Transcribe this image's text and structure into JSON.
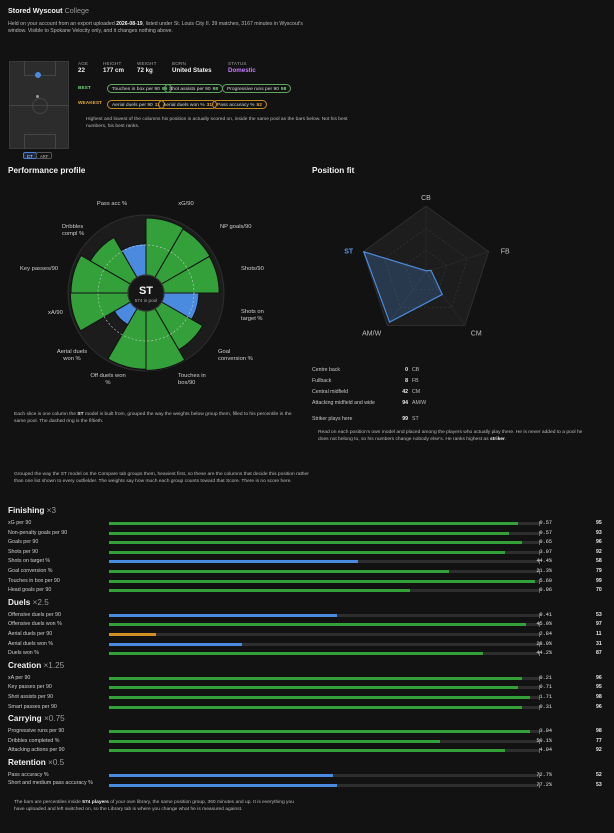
{
  "header": {
    "title": "Stored Wyscout",
    "subtitle": "College",
    "desc_1": "Held on your account from an export uploaded ",
    "desc_date": "2026-08-19",
    "desc_2": ", listed under St. Louis City II. 39 matches, 3167 minutes in Wyscout's window. Visible to Spokane Velocity only, and it changes nothing above."
  },
  "bio": [
    {
      "label": "AGE",
      "value": "22"
    },
    {
      "label": "HEIGHT",
      "value": "177 cm"
    },
    {
      "label": "WEIGHT",
      "value": "72 kg"
    },
    {
      "label": "BORN",
      "value": "United States"
    },
    {
      "label": "STATUS",
      "value": "Domestic"
    }
  ],
  "colors": {
    "status": "#c77dff",
    "green": "#33a03a",
    "blue": "#4a8be0",
    "orange": "#d18f24",
    "best": "#6fd676",
    "weakest": "#e6a73a"
  },
  "best": {
    "label": "BEST",
    "chips": [
      {
        "text": "Touches in box per 90",
        "n": "99"
      },
      {
        "text": "Shot assists per 90",
        "n": "98"
      },
      {
        "text": "Progressive runs per 90",
        "n": "98"
      }
    ]
  },
  "weakest": {
    "label": "WEAKEST",
    "chips": [
      {
        "text": "Aerial duels per 90",
        "n": "11"
      },
      {
        "text": "Aerial duels won %",
        "n": "31"
      },
      {
        "text": "Pass accuracy %",
        "n": "52"
      }
    ]
  },
  "note_bestworst": "Highest and lowest of the columns his position is actually scored on, inside the same pool as the bars below. Not his best numbers, his best ranks.",
  "pitch_buttons": [
    "CT",
    "ARF"
  ],
  "perf": {
    "title": "Performance profile",
    "center": "ST",
    "center_sub": "574 in pool",
    "labels": [
      "Pass acc %",
      "xG/90",
      "NP goals/90",
      "Shots/90",
      "Shots on target %",
      "Goal conversion %",
      "Touches in box/90",
      "Off duels won %",
      "Aerial duels won %",
      "xA/90",
      "Key passes/90",
      "Dribbles compl %"
    ],
    "caption_1": "Each slice is one column the ",
    "caption_st": "ST",
    "caption_2": " model is built from, grouped the way the weights below group them, filled to his percentile in the same pool. The dashed ring is the fiftieth."
  },
  "chart_data": [
    {
      "type": "polar-area",
      "categories": [
        "xG/90",
        "NP goals/90",
        "Shots/90",
        "Shots on target %",
        "Goal conversion %",
        "Touches in box/90",
        "Off duels won %",
        "Aerial duels won %",
        "xA/90",
        "Key passes/90",
        "Dribbles compl %",
        "Pass acc %"
      ],
      "values": [
        95,
        93,
        92,
        58,
        79,
        99,
        97,
        31,
        96,
        95,
        77,
        52
      ],
      "colors": [
        "green",
        "green",
        "green",
        "blue",
        "green",
        "green",
        "green",
        "blue",
        "green",
        "green",
        "green",
        "blue"
      ],
      "rmax": 100,
      "ring50": true
    },
    {
      "type": "radar",
      "categories": [
        "CB",
        "FB",
        "CM",
        "AM/W",
        "ST"
      ],
      "values": [
        0,
        8,
        42,
        94,
        99
      ],
      "rmax": 100,
      "highlight": "ST"
    }
  ],
  "fit": {
    "title": "Position fit",
    "rows": [
      {
        "label": "Centre back",
        "n": "0",
        "code": "CB"
      },
      {
        "label": "Fullback",
        "n": "8",
        "code": "FB"
      },
      {
        "label": "Central midfield",
        "n": "42",
        "code": "CM"
      },
      {
        "label": "Attacking midfield and wide",
        "n": "94",
        "code": "AM/W"
      },
      {
        "label": "Striker plays here",
        "n": "99",
        "code": "ST"
      }
    ],
    "note_1": "Read on each position's own model and placed among the players who actually play there. He is never added to a pool he does not belong to, so his numbers change nobody else's. He ranks highest as ",
    "note_bold": "striker",
    "note_2": "."
  },
  "weights_intro": "Grouped the way the ST model on the Compare tab groups them, heaviest first, so these are the columns that decide this position rather than one list shown to every outfielder. The weights say how much each group counts toward that Score. There is no score here.",
  "groups": [
    {
      "name": "Finishing",
      "mult": "×3",
      "rows": [
        {
          "label": "xG per 90",
          "value": "0.57",
          "pct": 95,
          "color": "green"
        },
        {
          "label": "Non-penalty goals per 90",
          "value": "0.57",
          "pct": 93,
          "color": "green"
        },
        {
          "label": "Goals per 90",
          "value": "0.65",
          "pct": 96,
          "color": "green"
        },
        {
          "label": "Shots per 90",
          "value": "3.07",
          "pct": 92,
          "color": "green"
        },
        {
          "label": "Shots on target %",
          "value": "44.4%",
          "pct": 58,
          "color": "blue"
        },
        {
          "label": "Goal conversion %",
          "value": "21.3%",
          "pct": 79,
          "color": "green"
        },
        {
          "label": "Touches in box per 90",
          "value": "5.60",
          "pct": 99,
          "color": "green"
        },
        {
          "label": "Head goals per 90",
          "value": "0.06",
          "pct": 70,
          "color": "green"
        }
      ]
    },
    {
      "name": "Duels",
      "mult": "×2.5",
      "rows": [
        {
          "label": "Offensive duels per 90",
          "value": "9.41",
          "pct": 53,
          "color": "blue"
        },
        {
          "label": "Offensive duels won %",
          "value": "45.9%",
          "pct": 97,
          "color": "green"
        },
        {
          "label": "Aerial duels per 90",
          "value": "2.84",
          "pct": 11,
          "color": "orange"
        },
        {
          "label": "Aerial duels won %",
          "value": "28.0%",
          "pct": 31,
          "color": "blue"
        },
        {
          "label": "Duels won %",
          "value": "44.2%",
          "pct": 87,
          "color": "green"
        }
      ]
    },
    {
      "name": "Creation",
      "mult": "×1.25",
      "rows": [
        {
          "label": "xA per 90",
          "value": "0.21",
          "pct": 96,
          "color": "green"
        },
        {
          "label": "Key passes per 90",
          "value": "0.71",
          "pct": 95,
          "color": "green"
        },
        {
          "label": "Shot assists per 90",
          "value": "1.71",
          "pct": 98,
          "color": "green"
        },
        {
          "label": "Smart passes per 90",
          "value": "0.31",
          "pct": 96,
          "color": "green"
        }
      ]
    },
    {
      "name": "Carrying",
      "mult": "×0.75",
      "rows": [
        {
          "label": "Progressive runs per 90",
          "value": "3.04",
          "pct": 98,
          "color": "green"
        },
        {
          "label": "Dribbles completed %",
          "value": "59.1%",
          "pct": 77,
          "color": "green"
        },
        {
          "label": "Attacking actions per 90",
          "value": "4.04",
          "pct": 92,
          "color": "green"
        }
      ]
    },
    {
      "name": "Retention",
      "mult": "×0.5",
      "rows": [
        {
          "label": "Pass accuracy %",
          "value": "72.7%",
          "pct": 52,
          "color": "blue"
        },
        {
          "label": "Short and medium pass accuracy %",
          "value": "77.2%",
          "pct": 53,
          "color": "blue"
        }
      ]
    }
  ],
  "footer_1": "The bars are percentiles inside ",
  "footer_bold": "574 players",
  "footer_2": " of your own library, the same position group, 360 minutes and up. It is everything you have uploaded and left switched on, so the Library tab is where you change what he is measured against."
}
